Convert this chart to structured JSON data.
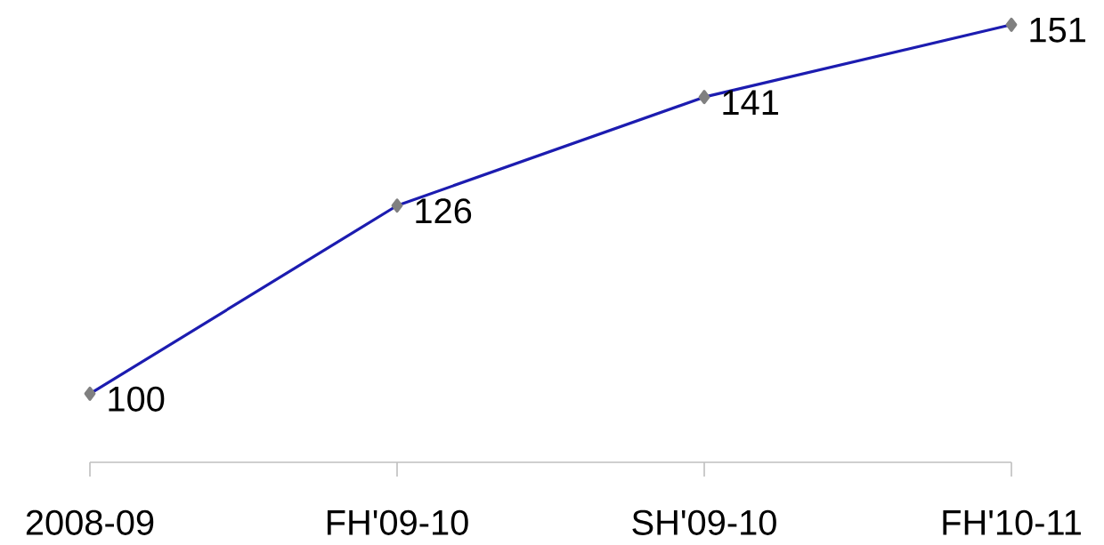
{
  "chart_data": {
    "type": "line",
    "categories": [
      "2008-09",
      "FH'09-10",
      "SH'09-10",
      "FH'10-11"
    ],
    "series": [
      {
        "color": "#1c1cb0",
        "values": [
          100,
          126,
          141,
          151
        ]
      }
    ],
    "data_labels": true,
    "marker": "diamond",
    "grid": false
  }
}
